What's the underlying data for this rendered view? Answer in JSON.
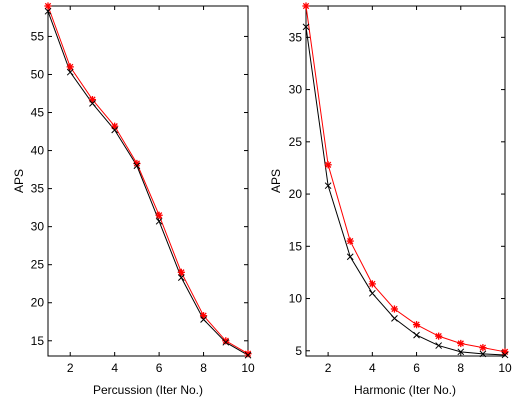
{
  "chart_data": [
    {
      "type": "line",
      "xlabel": "Percussion (Iter No.)",
      "ylabel": "APS",
      "xlim": [
        1,
        10
      ],
      "ylim": [
        13,
        59
      ],
      "xticks": [
        2,
        4,
        6,
        8,
        10
      ],
      "yticks": [
        15,
        20,
        25,
        30,
        35,
        40,
        45,
        50,
        55
      ],
      "grid": false,
      "series": [
        {
          "color": "#ff0000",
          "marker": "star",
          "x": [
            1,
            2,
            3,
            4,
            5,
            6,
            7,
            8,
            9,
            10
          ],
          "values": [
            59,
            51,
            46.7,
            43.2,
            38.3,
            31.5,
            24,
            18.3,
            15,
            13.3
          ]
        },
        {
          "color": "#000000",
          "marker": "x",
          "x": [
            1,
            2,
            3,
            4,
            5,
            6,
            7,
            8,
            9,
            10
          ],
          "values": [
            58.3,
            50.3,
            46.2,
            42.7,
            38,
            30.7,
            23.3,
            17.8,
            14.8,
            13.1
          ]
        }
      ]
    },
    {
      "type": "line",
      "xlabel": "Harmonic (Iter No.)",
      "ylabel": "APS",
      "xlim": [
        1,
        10
      ],
      "ylim": [
        4.5,
        38
      ],
      "xticks": [
        2,
        4,
        6,
        8,
        10
      ],
      "yticks": [
        5,
        10,
        15,
        20,
        25,
        30,
        35
      ],
      "grid": false,
      "series": [
        {
          "color": "#ff0000",
          "marker": "star",
          "x": [
            1,
            2,
            3,
            4,
            5,
            6,
            7,
            8,
            9,
            10
          ],
          "values": [
            38,
            22.8,
            15.5,
            11.4,
            9,
            7.5,
            6.4,
            5.7,
            5.3,
            4.9
          ]
        },
        {
          "color": "#000000",
          "marker": "x",
          "x": [
            1,
            2,
            3,
            4,
            5,
            6,
            7,
            8,
            9,
            10
          ],
          "values": [
            36,
            20.8,
            14,
            10.5,
            8.1,
            6.5,
            5.5,
            4.9,
            4.7,
            4.6
          ]
        }
      ]
    }
  ]
}
